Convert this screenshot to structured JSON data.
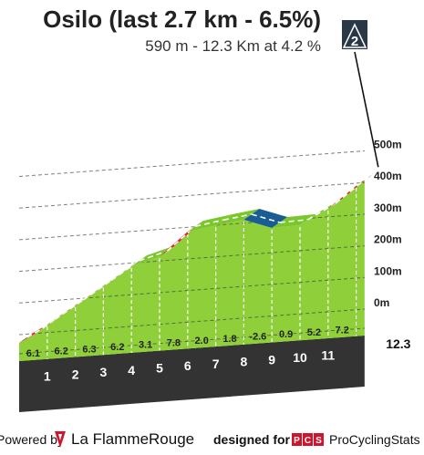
{
  "header": {
    "title": "Osilo (last 2.7 km - 6.5%)",
    "subtitle": "590 m - 12.3 Km at 4.2 %",
    "category_badge": "2"
  },
  "chart_data": {
    "type": "area",
    "title": "Osilo (last 2.7 km - 6.5%)",
    "subtitle": "590 m - 12.3 Km at 4.2 %",
    "total_distance_label": "12.3",
    "km_markers": [
      "1",
      "2",
      "3",
      "4",
      "5",
      "6",
      "7",
      "8",
      "9",
      "10",
      "11"
    ],
    "km_gradient_labels": [
      "6.1",
      "6.2",
      "6.3",
      "6.2",
      "3.1",
      "7.8",
      "2.0",
      "1.8",
      "-2.6",
      "0.9",
      "5.2",
      "7.2"
    ],
    "segment_gradients": [
      6.1,
      6.2,
      6.3,
      6.2,
      3.1,
      7.8,
      2.0,
      1.8,
      -2.6,
      0.9,
      5.2,
      7.2,
      6.5
    ],
    "altitude_ticks": [
      "0m",
      "100m",
      "200m",
      "300m",
      "400m",
      "500m"
    ],
    "altitude_values": [
      0,
      100,
      200,
      300,
      400,
      500
    ],
    "profile": {
      "x_km": [
        0,
        0.5,
        1,
        2,
        3,
        4,
        5,
        6,
        7,
        8,
        9,
        10,
        11,
        12,
        12.3
      ],
      "altitude_m": [
        -95,
        -70,
        -38,
        23,
        85,
        147,
        178,
        256,
        276,
        294,
        268,
        277,
        329,
        401,
        420
      ]
    },
    "segment_colors": {
      "steep": "#e8203a",
      "moderate": "#79c72c",
      "descent": "#1a5d93",
      "finish": "#111111"
    }
  },
  "footer": {
    "powered_by": "Powered by",
    "lfr_brand": "La FlammeRouge",
    "designed_for": "designed for",
    "pcs_logo": "PCS",
    "pcs_brand": "ProCyclingStats"
  }
}
